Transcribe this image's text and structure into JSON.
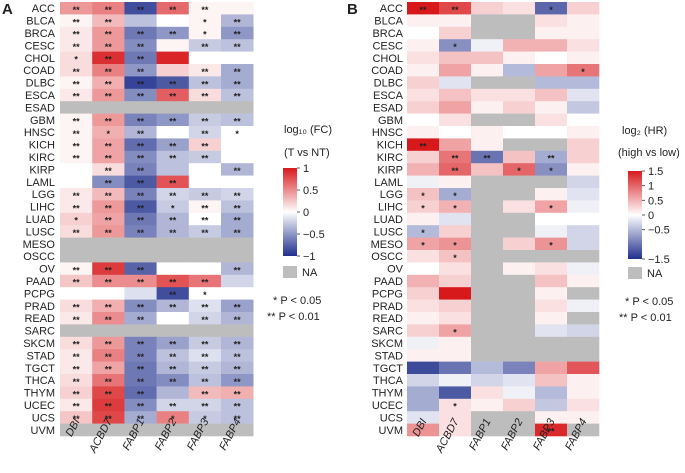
{
  "rows": [
    "ACC",
    "BLCA",
    "BRCA",
    "CESC",
    "CHOL",
    "COAD",
    "DLBC",
    "ESCA",
    "ESAD",
    "GBM",
    "HNSC",
    "KICH",
    "KIRC",
    "KIRP",
    "LAML",
    "LGG",
    "LIHC",
    "LUAD",
    "LUSC",
    "MESO",
    "OSCC",
    "OV",
    "PAAD",
    "PCPG",
    "PRAD",
    "READ",
    "SARC",
    "SKCM",
    "STAD",
    "TGCT",
    "THCA",
    "THYM",
    "UCEC",
    "UCS",
    "UVM"
  ],
  "columns": [
    "DBI",
    "ACBD7",
    "FABP1",
    "FABP2",
    "FABP3",
    "FABP4"
  ],
  "colors": {
    "high": "#d7191c",
    "mid": "#ffffff",
    "low": "#1f2f8c",
    "na": "#bdbdbd"
  },
  "chart_data": [
    {
      "panel": "A",
      "type": "heatmap",
      "colorbar_title": [
        "log₁₀ (FC)",
        "(T vs NT)"
      ],
      "colorbar_ticks": [
        "1",
        "0.5",
        "0",
        "−0.5",
        "−1"
      ],
      "zlim": [
        -1,
        1
      ],
      "na_label": "NA",
      "sig_notes": [
        "* P < 0.05",
        "** P < 0.01"
      ],
      "values": [
        [
          0.45,
          0.55,
          -0.85,
          0.65,
          0.05,
          0.05
        ],
        [
          0.05,
          0.3,
          -0.3,
          0.0,
          0.05,
          -0.35
        ],
        [
          0.1,
          0.45,
          -0.65,
          -0.5,
          0.05,
          -0.5
        ],
        [
          0.1,
          0.45,
          -0.55,
          0.05,
          -0.25,
          -0.3
        ],
        [
          0.15,
          0.9,
          -0.65,
          0.95,
          0.0,
          0.0
        ],
        [
          0.15,
          0.55,
          -0.5,
          0.2,
          0.1,
          -0.4
        ],
        [
          0.05,
          0.35,
          -0.9,
          -0.8,
          -0.3,
          -0.4
        ],
        [
          0.1,
          0.45,
          -0.55,
          0.7,
          0.15,
          -0.3
        ],
        [
          null,
          null,
          null,
          null,
          null,
          null
        ],
        [
          0.05,
          0.45,
          -0.6,
          -0.5,
          -0.25,
          -0.3
        ],
        [
          0.05,
          0.35,
          -0.35,
          0.0,
          -0.2,
          0.0
        ],
        [
          0.05,
          0.4,
          -0.7,
          -0.45,
          0.2,
          0.0
        ],
        [
          0.05,
          0.4,
          -0.55,
          -0.3,
          -0.25,
          0.0
        ],
        [
          0.0,
          0.15,
          -0.6,
          -0.3,
          0.0,
          -0.35
        ],
        [
          0.0,
          -0.55,
          -0.8,
          0.75,
          0.0,
          0.0
        ],
        [
          0.1,
          0.3,
          -0.6,
          -0.2,
          -0.25,
          -0.2
        ],
        [
          0.1,
          0.45,
          -0.8,
          -0.25,
          0.05,
          -0.3
        ],
        [
          0.2,
          0.4,
          -0.65,
          -0.35,
          0.0,
          -0.4
        ],
        [
          0.15,
          0.45,
          -0.6,
          -0.35,
          -0.25,
          -0.4
        ],
        [
          null,
          null,
          null,
          null,
          null,
          null
        ],
        [
          null,
          null,
          null,
          null,
          null,
          null
        ],
        [
          0.05,
          0.85,
          -0.75,
          0.0,
          0.0,
          -0.35
        ],
        [
          0.25,
          0.5,
          0.5,
          0.75,
          0.6,
          -0.2
        ],
        [
          0.0,
          0.0,
          -0.15,
          -0.85,
          0.0,
          0.0
        ],
        [
          0.15,
          0.35,
          -0.55,
          -0.35,
          -0.15,
          -0.45
        ],
        [
          0.1,
          0.5,
          -0.4,
          0.0,
          -0.2,
          -0.35
        ],
        [
          null,
          null,
          null,
          null,
          null,
          null
        ],
        [
          0.15,
          0.45,
          -0.6,
          -0.45,
          -0.25,
          -0.35
        ],
        [
          0.1,
          0.55,
          -0.6,
          -0.3,
          -0.15,
          -0.3
        ],
        [
          0.1,
          0.4,
          -0.65,
          -0.35,
          -0.25,
          -0.35
        ],
        [
          0.15,
          0.6,
          -0.65,
          -0.55,
          -0.3,
          -0.5
        ],
        [
          0.2,
          0.8,
          -0.7,
          -0.35,
          0.3,
          0.35
        ],
        [
          0.1,
          0.85,
          -0.55,
          -0.2,
          -0.2,
          -0.3
        ],
        [
          0.25,
          0.8,
          -0.4,
          0.55,
          -0.25,
          -0.3
        ],
        [
          null,
          null,
          null,
          null,
          null,
          null
        ]
      ],
      "stars": [
        [
          "**",
          "**",
          "**",
          "**",
          "**",
          ""
        ],
        [
          "**",
          "**",
          "",
          "",
          "*",
          "**"
        ],
        [
          "**",
          "**",
          "**",
          "**",
          "*",
          "**"
        ],
        [
          "**",
          "**",
          "**",
          "",
          "**",
          "**"
        ],
        [
          "*",
          "**",
          "**",
          "",
          "",
          ""
        ],
        [
          "**",
          "**",
          "**",
          "",
          "**",
          "**"
        ],
        [
          "**",
          "**",
          "**",
          "**",
          "**",
          "**"
        ],
        [
          "**",
          "**",
          "**",
          "**",
          "**",
          "**"
        ],
        [
          "",
          "",
          "",
          "",
          "",
          ""
        ],
        [
          "**",
          "**",
          "**",
          "**",
          "**",
          "**"
        ],
        [
          "**",
          "*",
          "**",
          "",
          "**",
          "*"
        ],
        [
          "**",
          "**",
          "**",
          "**",
          "**",
          ""
        ],
        [
          "**",
          "**",
          "**",
          "**",
          "**",
          ""
        ],
        [
          "",
          "**",
          "**",
          "",
          "",
          "**"
        ],
        [
          "",
          "**",
          "**",
          "**",
          "",
          ""
        ],
        [
          "**",
          "**",
          "**",
          "**",
          "**",
          "**"
        ],
        [
          "**",
          "**",
          "**",
          "*",
          "**",
          "**"
        ],
        [
          "*",
          "**",
          "**",
          "**",
          "**",
          "**"
        ],
        [
          "**",
          "**",
          "**",
          "**",
          "**",
          "**"
        ],
        [
          "",
          "",
          "",
          "",
          "",
          ""
        ],
        [
          "",
          "",
          "",
          "",
          "",
          ""
        ],
        [
          "**",
          "**",
          "**",
          "",
          "",
          "**"
        ],
        [
          "**",
          "**",
          "**",
          "**",
          "**",
          ""
        ],
        [
          "",
          "",
          "",
          "**",
          "*",
          ""
        ],
        [
          "**",
          "**",
          "**",
          "**",
          "**",
          "**"
        ],
        [
          "**",
          "**",
          "**",
          "",
          "**",
          "**"
        ],
        [
          "",
          "",
          "",
          "",
          "",
          ""
        ],
        [
          "**",
          "**",
          "**",
          "**",
          "**",
          "**"
        ],
        [
          "**",
          "**",
          "**",
          "**",
          "**",
          "**"
        ],
        [
          "**",
          "**",
          "**",
          "**",
          "**",
          "**"
        ],
        [
          "**",
          "**",
          "**",
          "**",
          "**",
          "**"
        ],
        [
          "**",
          "**",
          "**",
          "",
          "**",
          "**"
        ],
        [
          "**",
          "**",
          "**",
          "**",
          "**",
          "**"
        ],
        [
          "**",
          "**",
          "**",
          "*",
          "*",
          "**"
        ],
        [
          "",
          "",
          "",
          "",
          "",
          ""
        ]
      ]
    },
    {
      "panel": "B",
      "type": "heatmap",
      "colorbar_title": [
        "log₂ (HR)",
        "(high vs low)"
      ],
      "colorbar_ticks": [
        "1.5",
        "1",
        "0.5",
        "0",
        "−0.5",
        "−1.5"
      ],
      "zlim": [
        -1.5,
        1.5
      ],
      "na_label": "NA",
      "sig_notes": [
        "* P < 0.05",
        "** P < 0.01"
      ],
      "values": [
        [
          1.5,
          1.2,
          0.3,
          0.2,
          -1.1,
          0.3
        ],
        [
          0.1,
          0.1,
          null,
          null,
          0.2,
          0.1
        ],
        [
          0.0,
          0.3,
          null,
          null,
          0.1,
          0.1
        ],
        [
          0.1,
          -0.8,
          -0.1,
          0.5,
          0.5,
          0.2
        ],
        [
          0.2,
          0.4,
          0.4,
          0.1,
          0.0,
          0.1
        ],
        [
          0.1,
          0.6,
          0.1,
          -0.5,
          0.6,
          0.9
        ],
        [
          0.3,
          -0.2,
          null,
          null,
          -0.5,
          -0.5
        ],
        [
          0.2,
          0.4,
          0.2,
          0.2,
          0.4,
          -0.2
        ],
        [
          0.3,
          0.6,
          0.1,
          0.3,
          0.1,
          -0.4
        ],
        [
          0.0,
          0.2,
          null,
          null,
          0.2,
          0.0
        ],
        [
          0.1,
          0.0,
          0.1,
          0.0,
          0.0,
          0.1
        ],
        [
          1.5,
          0.6,
          0.1,
          null,
          null,
          0.3
        ],
        [
          0.3,
          0.9,
          -1.0,
          0.4,
          -0.6,
          0.3
        ],
        [
          0.5,
          1.0,
          0.4,
          1.0,
          -0.8,
          0.1
        ],
        [
          -0.1,
          0.1,
          null,
          null,
          null,
          -0.3
        ],
        [
          0.4,
          -0.6,
          null,
          null,
          0.1,
          -0.2
        ],
        [
          0.3,
          0.5,
          null,
          0.2,
          0.6,
          -0.1
        ],
        [
          0.1,
          -0.2,
          null,
          null,
          0.0,
          0.0
        ],
        [
          -0.5,
          0.3,
          null,
          null,
          -0.1,
          -0.3
        ],
        [
          0.6,
          0.7,
          null,
          0.3,
          0.7,
          -0.3
        ],
        [
          0.2,
          0.4,
          null,
          null,
          null,
          null
        ],
        [
          0.0,
          0.2,
          null,
          0.1,
          0.2,
          -0.1
        ],
        [
          0.5,
          0.3,
          null,
          null,
          0.4,
          0.1
        ],
        [
          0.3,
          1.5,
          null,
          null,
          0.1,
          null
        ],
        [
          0.2,
          0.3,
          null,
          null,
          0.2,
          -0.1
        ],
        [
          0.1,
          0.2,
          null,
          null,
          0.1,
          null
        ],
        [
          0.3,
          0.6,
          null,
          null,
          -0.2,
          -0.3
        ],
        [
          -0.1,
          0.1,
          null,
          null,
          null,
          null
        ],
        [
          0.1,
          0.1,
          null,
          null,
          null,
          null
        ],
        [
          -1.3,
          -1.0,
          -0.5,
          -0.9,
          0.6,
          1.1
        ],
        [
          -0.3,
          -0.1,
          -0.3,
          -0.2,
          0.4,
          0.1
        ],
        [
          -0.6,
          -1.2,
          0.2,
          -0.1,
          -0.5,
          0.1
        ],
        [
          -0.6,
          0.2,
          0.1,
          0.3,
          -0.4,
          0.2
        ],
        [
          -0.2,
          0.2,
          null,
          null,
          0.1,
          0.1
        ],
        [
          0.7,
          0.2,
          null,
          null,
          1.4,
          null
        ]
      ],
      "stars": [
        [
          "**",
          "**",
          "",
          "",
          "*",
          ""
        ],
        [
          "",
          "",
          "",
          "",
          "",
          ""
        ],
        [
          "",
          "",
          "",
          "",
          "",
          ""
        ],
        [
          "",
          "*",
          "",
          "",
          "",
          ""
        ],
        [
          "",
          "",
          "",
          "",
          "",
          ""
        ],
        [
          "",
          "",
          "",
          "",
          "",
          "*"
        ],
        [
          "",
          "",
          "",
          "",
          "",
          ""
        ],
        [
          "",
          "",
          "",
          "",
          "",
          ""
        ],
        [
          "",
          "",
          "",
          "",
          "",
          ""
        ],
        [
          "",
          "",
          "",
          "",
          "",
          ""
        ],
        [
          "",
          "",
          "",
          "",
          "",
          ""
        ],
        [
          "**",
          "",
          "",
          "",
          "",
          ""
        ],
        [
          "",
          "**",
          "**",
          "",
          "**",
          ""
        ],
        [
          "",
          "**",
          "",
          "*",
          "*",
          ""
        ],
        [
          "",
          "",
          "",
          "",
          "",
          ""
        ],
        [
          "*",
          "*",
          "",
          "",
          "",
          ""
        ],
        [
          "*",
          "*",
          "",
          "",
          "*",
          ""
        ],
        [
          "",
          "",
          "",
          "",
          "",
          ""
        ],
        [
          "*",
          "",
          "",
          "",
          "",
          ""
        ],
        [
          "*",
          "*",
          "",
          "",
          "*",
          ""
        ],
        [
          "",
          "*",
          "",
          "",
          "",
          ""
        ],
        [
          "",
          "",
          "",
          "",
          "",
          ""
        ],
        [
          "",
          "",
          "",
          "",
          "",
          ""
        ],
        [
          "",
          "",
          "",
          "",
          "",
          ""
        ],
        [
          "",
          "",
          "",
          "",
          "",
          ""
        ],
        [
          "",
          "",
          "",
          "",
          "",
          ""
        ],
        [
          "",
          "*",
          "",
          "",
          "",
          ""
        ],
        [
          "",
          "",
          "",
          "",
          "",
          ""
        ],
        [
          "",
          "",
          "",
          "",
          "",
          ""
        ],
        [
          "",
          "",
          "",
          "",
          "",
          ""
        ],
        [
          "",
          "",
          "",
          "",
          "",
          ""
        ],
        [
          "",
          "",
          "",
          "",
          "",
          ""
        ],
        [
          "",
          "*",
          "",
          "",
          "",
          ""
        ],
        [
          "",
          "",
          "",
          "",
          "",
          ""
        ],
        [
          "",
          "",
          "",
          "",
          "**",
          ""
        ]
      ]
    }
  ]
}
